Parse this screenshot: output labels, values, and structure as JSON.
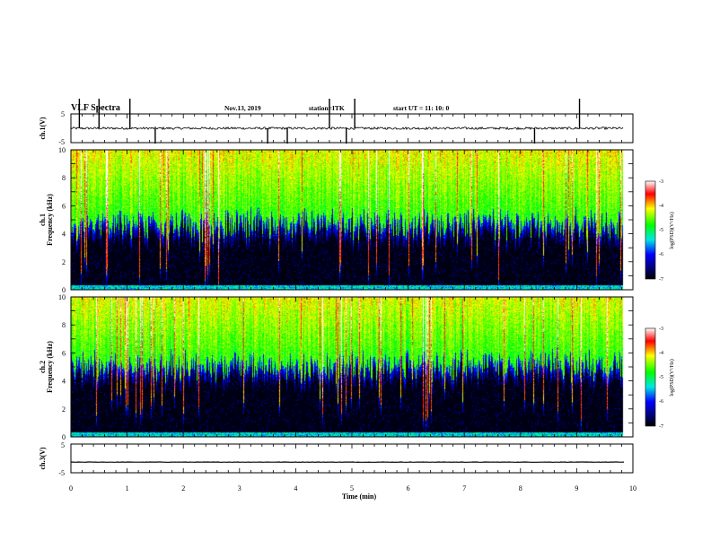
{
  "header": {
    "title": "VLF Spectra",
    "date": "Nov.13, 2019",
    "station": "station=ITK",
    "start": "start  UT =   11: 10: 0"
  },
  "colors": {
    "background": "#ffffff",
    "spectrogram_low": "#000000",
    "blue": "#0000ff",
    "cyan": "#00e6e6",
    "green": "#00ff00",
    "yellow": "#ffff00",
    "red": "#ff0000"
  },
  "chart_data": [
    {
      "type": "line",
      "panel": "ch1-waveform",
      "ylabel": "ch.1(V)",
      "ylim": [
        -5,
        5
      ],
      "yticks": [
        "5",
        "-5"
      ],
      "baseline_value": 0,
      "noise_amplitude": 0.4,
      "spike_times_min": [
        0.15,
        0.5,
        1.05,
        1.5,
        3.5,
        3.85,
        4.6,
        4.9,
        5.05,
        8.25,
        9.05
      ]
    },
    {
      "type": "heatmap",
      "panel": "ch1-spectrogram",
      "ylabel": "ch.1\nFrequency (kHz)",
      "xlim": [
        0,
        10
      ],
      "ylim": [
        0,
        10
      ],
      "yticks": [
        "0",
        "2",
        "4",
        "6",
        "8",
        "10"
      ],
      "data_end_time_min": 9.83,
      "noise_floor_kHz": 5.2,
      "colorbar": {
        "label": "log(PSD)(V²/Hz)",
        "range": [
          -7,
          -3
        ],
        "ticks": [
          "-3",
          "-4",
          "-5",
          "-6",
          "-7"
        ]
      }
    },
    {
      "type": "heatmap",
      "panel": "ch2-spectrogram",
      "ylabel": "ch.2\nFrequency (kHz)",
      "xlim": [
        0,
        10
      ],
      "ylim": [
        0,
        10
      ],
      "yticks": [
        "0",
        "2",
        "4",
        "6",
        "8",
        "10"
      ],
      "data_end_time_min": 9.83,
      "noise_floor_kHz": 5.6,
      "colorbar": {
        "label": "log(PSD)(V²/Hz)",
        "range": [
          -7,
          -3
        ],
        "ticks": [
          "-3",
          "-4",
          "-5",
          "-6",
          "-7"
        ]
      }
    },
    {
      "type": "line",
      "panel": "ch3-waveform",
      "ylabel": "ch.3(V)",
      "ylim": [
        -5,
        5
      ],
      "yticks": [
        "5",
        "-5"
      ],
      "baseline_value": -1.3,
      "noise_amplitude": 0.05,
      "xlabel": "Time (min)",
      "xlim": [
        0,
        10
      ],
      "xticks": [
        "0",
        "1",
        "2",
        "3",
        "4",
        "5",
        "6",
        "7",
        "8",
        "9",
        "10"
      ]
    }
  ]
}
